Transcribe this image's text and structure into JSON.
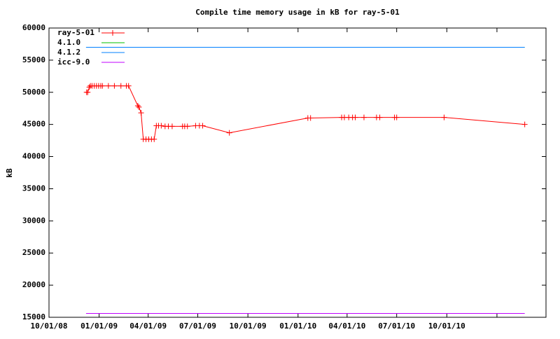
{
  "chart_data": {
    "type": "line",
    "title": "Compile time memory usage in kB for ray-5-01",
    "ylabel": "kB",
    "xlim": [
      "10/01/08",
      "04/01/11"
    ],
    "xticks": [
      "10/01/08",
      "01/01/09",
      "04/01/09",
      "07/01/09",
      "10/01/09",
      "01/01/10",
      "04/01/10",
      "07/01/10",
      "10/01/10",
      {
        "value": "01/01/11",
        "label": null
      }
    ],
    "ylim": [
      15000,
      60000
    ],
    "yticks": [
      15000,
      20000,
      25000,
      30000,
      35000,
      40000,
      45000,
      50000,
      55000,
      60000
    ],
    "legend": "top-left",
    "series": [
      {
        "name": "ray-5-01",
        "color": "#ff0000",
        "markers": true,
        "x": [
          "12/09/08",
          "12/11/08",
          "12/14/08",
          "12/16/08",
          "12/19/08",
          "12/23/08",
          "12/27/08",
          "12/31/08",
          "01/04/09",
          "01/07/09",
          "01/18/09",
          "01/29/09",
          "02/10/09",
          "02/20/09",
          "02/24/09",
          "03/13/09",
          "03/15/09",
          "03/19/09",
          "03/23/09",
          "03/28/09",
          "04/02/09",
          "04/07/09",
          "04/12/09",
          "04/16/09",
          "04/20/09",
          "04/25/09",
          "05/02/09",
          "05/08/09",
          "05/15/09",
          "06/03/09",
          "06/07/09",
          "06/12/09",
          "06/27/09",
          "07/04/09",
          "07/10/09",
          "08/28/09",
          "01/19/10",
          "01/24/10",
          "03/22/10",
          "03/27/10",
          "04/04/10",
          "04/11/10",
          "04/16/10",
          "05/02/10",
          "05/25/10",
          "05/31/10",
          "06/27/10",
          "07/01/10",
          "09/26/10",
          "02/21/11"
        ],
        "values": [
          50000,
          50000,
          50800,
          51000,
          51000,
          51000,
          51000,
          51000,
          51000,
          51000,
          51000,
          51000,
          51000,
          51000,
          51000,
          47900,
          47700,
          46800,
          42700,
          42700,
          42700,
          42700,
          42700,
          44800,
          44800,
          44800,
          44700,
          44700,
          44700,
          44700,
          44700,
          44700,
          44800,
          44800,
          44800,
          43700,
          46000,
          46000,
          46100,
          46100,
          46100,
          46100,
          46100,
          46100,
          46100,
          46100,
          46100,
          46100,
          46100,
          45000
        ]
      },
      {
        "name": "4.1.0",
        "color": "#00c000",
        "markers": false,
        "x": [
          "12/08/08",
          "02/21/11"
        ],
        "values": [
          57000,
          57000
        ]
      },
      {
        "name": "4.1.2",
        "color": "#0080ff",
        "markers": false,
        "x": [
          "12/08/08",
          "02/21/11"
        ],
        "values": [
          57000,
          57000
        ]
      },
      {
        "name": "icc-9.0",
        "color": "#c000ff",
        "markers": false,
        "x": [
          "12/08/08",
          "02/21/11"
        ],
        "values": [
          15600,
          15600
        ]
      }
    ]
  }
}
